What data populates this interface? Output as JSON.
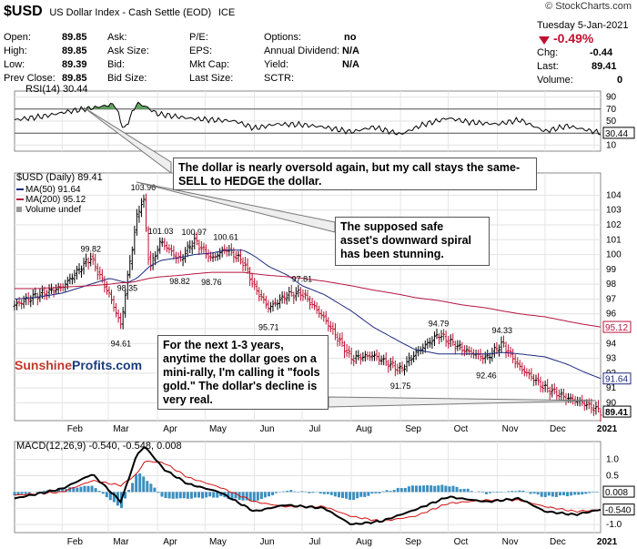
{
  "header": {
    "symbol": "$USD",
    "description": "US Dollar Index - Cash Settle (EOD)",
    "exchange": "ICE",
    "credit": "© StockCharts.com",
    "date": "Tuesday  5-Jan-2021"
  },
  "quote": {
    "open_label": "Open:",
    "open": "89.85",
    "high_label": "High:",
    "high": "89.85",
    "low_label": "Low:",
    "low": "89.39",
    "prev_label": "Prev Close:",
    "prev": "89.85",
    "ask_label": "Ask:",
    "ask": "",
    "asksize_label": "Ask Size:",
    "asksize": "",
    "bid_label": "Bid:",
    "bid": "",
    "bidsize_label": "Bid Size:",
    "bidsize": "",
    "pe_label": "P/E:",
    "pe": "",
    "eps_label": "EPS:",
    "eps": "",
    "mktcap_label": "Mkt Cap:",
    "mktcap": "",
    "lastsize_label": "Last Size:",
    "lastsize": "",
    "options_label": "Options:",
    "options": "no",
    "div_label": "Annual Dividend:",
    "div": "N/A",
    "yield_label": "Yield:",
    "yield": "N/A",
    "sctr_label": "SCTR:",
    "sctr": "",
    "change_pct": "-0.49%",
    "chg_label": "Chg:",
    "chg": "-0.44",
    "last_label": "Last:",
    "last": "89.41",
    "volume_label": "Volume:",
    "volume": "0"
  },
  "colors": {
    "price_up": "#000000",
    "price_down": "#c01030",
    "ma50": "#1f2a80",
    "ma200": "#b5153e",
    "rsi_line": "#000000",
    "rsi_overbought_fill": "#5aa35a",
    "rsi_oversold_fill": "#b07a7a",
    "macd_line": "#000000",
    "macd_signal": "#d01010",
    "macd_hist": "#3a8fc0"
  },
  "callouts": {
    "rsi": "The dollar is nearly oversold again, but my call stays the same- SELL to HEDGE the dollar.",
    "spiral": "The supposed safe asset's downward spiral has been stunning.",
    "gold": "For the next 1-3 years, anytime the dollar goes on a mini-rally, I'm calling it \"fools gold.\" The dollar's decline is very real."
  },
  "brand": {
    "part1": "Sunshine",
    "part2": "Profits.com"
  },
  "chart_data": [
    {
      "type": "line",
      "title": "RSI(14) 30.44",
      "ylim": [
        0,
        100
      ],
      "yticks": [
        10,
        30,
        50,
        70,
        90
      ],
      "reference_lines": [
        30,
        70
      ],
      "last_value_label": "30.44",
      "x": [
        "2020-01-02",
        "2020-01-20",
        "2020-02-05",
        "2020-02-20",
        "2020-03-05",
        "2020-03-11",
        "2020-03-19",
        "2020-03-24",
        "2020-04-01",
        "2020-04-20",
        "2020-05-05",
        "2020-05-20",
        "2020-06-01",
        "2020-06-15",
        "2020-07-01",
        "2020-07-15",
        "2020-08-01",
        "2020-08-15",
        "2020-09-01",
        "2020-09-15",
        "2020-10-01",
        "2020-10-15",
        "2020-11-01",
        "2020-11-15",
        "2020-12-01",
        "2020-12-15",
        "2021-01-05"
      ],
      "series": [
        {
          "values": [
            52,
            58,
            66,
            72,
            78,
            35,
            80,
            75,
            62,
            55,
            52,
            50,
            38,
            45,
            44,
            40,
            32,
            40,
            28,
            44,
            55,
            48,
            45,
            52,
            33,
            42,
            30.44
          ]
        }
      ]
    },
    {
      "type": "line",
      "title": "$USD (Daily) 89.41",
      "legend": [
        "MA(50) 91.64",
        "MA(200) 95.12",
        "Volume undef"
      ],
      "ylim": [
        88.8,
        105.5
      ],
      "yticks": [
        90,
        91,
        92,
        93,
        94,
        95,
        96,
        97,
        98,
        99,
        100,
        101,
        102,
        103,
        104
      ],
      "xticks": [
        "Feb",
        "Mar",
        "Apr",
        "May",
        "Jun",
        "Jul",
        "Aug",
        "Sep",
        "Oct",
        "Nov",
        "Dec",
        "2021"
      ],
      "x": [
        "2020-01-02",
        "2020-01-15",
        "2020-02-01",
        "2020-02-19",
        "2020-03-02",
        "2020-03-09",
        "2020-03-13",
        "2020-03-19",
        "2020-03-23",
        "2020-03-27",
        "2020-04-03",
        "2020-04-15",
        "2020-04-24",
        "2020-05-05",
        "2020-05-14",
        "2020-05-25",
        "2020-06-01",
        "2020-06-10",
        "2020-06-22",
        "2020-07-01",
        "2020-07-15",
        "2020-08-01",
        "2020-08-15",
        "2020-09-01",
        "2020-09-10",
        "2020-09-25",
        "2020-10-10",
        "2020-10-25",
        "2020-11-04",
        "2020-11-15",
        "2020-12-01",
        "2020-12-15",
        "2020-12-25",
        "2021-01-05"
      ],
      "series": [
        {
          "name": "$USD",
          "values": [
            96.6,
            97.2,
            97.8,
            99.8,
            97.2,
            95.2,
            98.35,
            102.5,
            103.96,
            99.0,
            100.9,
            99.6,
            100.97,
            99.7,
            100.4,
            99.5,
            97.8,
            96.4,
            97.3,
            97.4,
            95.7,
            93.0,
            93.2,
            92.2,
            93.3,
            94.6,
            93.6,
            93.0,
            94.0,
            92.4,
            91.0,
            90.3,
            90.0,
            89.41
          ]
        },
        {
          "name": "MA(50) 91.64",
          "values": [
            97.0,
            97.1,
            97.4,
            98.0,
            98.4,
            98.2,
            98.1,
            98.4,
            98.8,
            99.2,
            99.6,
            99.8,
            100.0,
            100.1,
            100.3,
            100.3,
            99.9,
            99.2,
            98.6,
            97.9,
            97.3,
            96.2,
            95.1,
            94.1,
            93.6,
            93.3,
            93.3,
            93.3,
            93.4,
            93.3,
            93.1,
            92.6,
            92.1,
            91.64
          ]
        },
        {
          "name": "MA(200) 95.12",
          "values": [
            97.7,
            97.7,
            97.8,
            97.9,
            98.0,
            98.1,
            98.1,
            98.2,
            98.3,
            98.4,
            98.5,
            98.6,
            98.7,
            98.8,
            98.8,
            98.8,
            98.7,
            98.6,
            98.5,
            98.4,
            98.2,
            97.9,
            97.6,
            97.3,
            97.1,
            96.9,
            96.6,
            96.4,
            96.2,
            96.0,
            95.8,
            95.5,
            95.3,
            95.12
          ]
        }
      ],
      "annotations": [
        {
          "x": "2020-02-19",
          "y": 99.82,
          "text": "99.82"
        },
        {
          "x": "2020-03-09",
          "y": 94.61,
          "text": "94.61"
        },
        {
          "x": "2020-03-13",
          "y": 98.35,
          "text": "98.35"
        },
        {
          "x": "2020-03-23",
          "y": 103.96,
          "text": "103.96"
        },
        {
          "x": "2020-04-03",
          "y": 101.03,
          "text": "101.03"
        },
        {
          "x": "2020-04-15",
          "y": 98.82,
          "text": "98.82"
        },
        {
          "x": "2020-04-24",
          "y": 100.97,
          "text": "100.97"
        },
        {
          "x": "2020-05-05",
          "y": 98.76,
          "text": "98.76"
        },
        {
          "x": "2020-05-14",
          "y": 100.61,
          "text": "100.61"
        },
        {
          "x": "2020-06-10",
          "y": 95.71,
          "text": "95.71"
        },
        {
          "x": "2020-07-01",
          "y": 97.81,
          "text": "97.81"
        },
        {
          "x": "2020-09-01",
          "y": 91.75,
          "text": "91.75"
        },
        {
          "x": "2020-09-25",
          "y": 94.79,
          "text": "94.79"
        },
        {
          "x": "2020-10-25",
          "y": 92.46,
          "text": "92.46"
        },
        {
          "x": "2020-11-04",
          "y": 94.33,
          "text": "94.33"
        }
      ],
      "right_labels": [
        {
          "y": 95.12,
          "text": "95.12"
        },
        {
          "y": 91.64,
          "text": "91.64"
        },
        {
          "y": 89.41,
          "text": "89.41"
        }
      ]
    },
    {
      "type": "line",
      "title": "MACD(12,26,9) -0.540, -0.548, 0.008",
      "ylim": [
        -1.25,
        1.55
      ],
      "yticks": [
        -1.0,
        -0.5,
        0.0,
        0.5,
        1.0
      ],
      "xticks": [
        "Feb",
        "Mar",
        "Apr",
        "May",
        "Jun",
        "Jul",
        "Aug",
        "Sep",
        "Oct",
        "Nov",
        "Dec",
        "2021"
      ],
      "x": [
        "2020-01-02",
        "2020-02-01",
        "2020-02-20",
        "2020-03-09",
        "2020-03-19",
        "2020-03-24",
        "2020-04-05",
        "2020-04-20",
        "2020-05-10",
        "2020-06-01",
        "2020-06-20",
        "2020-07-15",
        "2020-08-01",
        "2020-08-20",
        "2020-09-10",
        "2020-10-01",
        "2020-10-25",
        "2020-11-15",
        "2020-12-01",
        "2020-12-20",
        "2021-01-05"
      ],
      "series": [
        {
          "name": "MACD",
          "values": [
            -0.2,
            0.1,
            0.55,
            -0.3,
            1.15,
            1.4,
            0.7,
            0.25,
            0.0,
            -0.6,
            -0.4,
            -0.5,
            -1.0,
            -0.9,
            -0.55,
            -0.15,
            -0.3,
            -0.2,
            -0.6,
            -0.7,
            -0.54
          ]
        },
        {
          "name": "Signal",
          "values": [
            -0.1,
            0.0,
            0.35,
            0.2,
            0.55,
            0.95,
            0.9,
            0.45,
            0.15,
            -0.3,
            -0.45,
            -0.45,
            -0.75,
            -0.9,
            -0.75,
            -0.35,
            -0.25,
            -0.25,
            -0.45,
            -0.6,
            -0.548
          ]
        },
        {
          "name": "Histogram",
          "values": [
            -0.1,
            0.1,
            0.2,
            -0.5,
            0.6,
            0.45,
            -0.2,
            -0.2,
            -0.15,
            -0.3,
            0.05,
            -0.05,
            -0.25,
            0.0,
            0.2,
            0.2,
            -0.05,
            0.05,
            -0.15,
            -0.1,
            0.008
          ]
        }
      ],
      "right_labels": [
        {
          "y": 0.008,
          "text": "0.008"
        },
        {
          "y": -0.54,
          "text": "-0.540"
        }
      ]
    }
  ]
}
